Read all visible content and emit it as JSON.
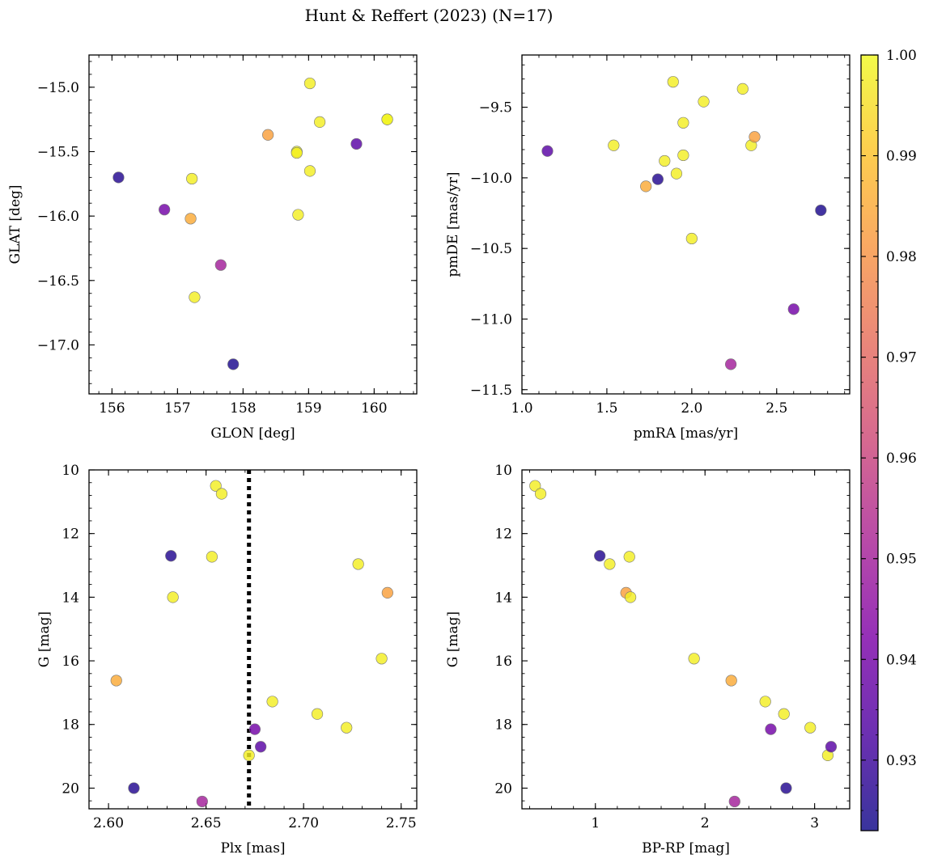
{
  "figure": {
    "title": "Hunt & Reffert (2023) (N=17)",
    "colorbar": {
      "colormap": "plasma",
      "range": [
        0.923,
        1.0
      ],
      "ticks": [
        0.93,
        0.94,
        0.95,
        0.96,
        0.97,
        0.98,
        0.99,
        1.0
      ],
      "tick_labels": [
        "0.93",
        "0.94",
        "0.95",
        "0.96",
        "0.97",
        "0.98",
        "0.99",
        "1.00"
      ]
    }
  },
  "chart_data": [
    {
      "type": "scatter",
      "xlabel": "GLON [deg]",
      "ylabel": "GLAT [deg]",
      "xlim": [
        155.65,
        160.65
      ],
      "ylim": [
        -17.38,
        -14.75
      ],
      "xticks": [
        156,
        157,
        158,
        159,
        160
      ],
      "yticks": [
        -15.0,
        -15.5,
        -16.0,
        -16.5,
        -17.0
      ],
      "xtick_labels": [
        "156",
        "157",
        "158",
        "159",
        "160"
      ],
      "ytick_labels": [
        "−15.0",
        "−15.5",
        "−16.0",
        "−16.5",
        "−17.0"
      ],
      "points": [
        {
          "x": 156.1,
          "y": -15.7,
          "c": 0.926
        },
        {
          "x": 156.8,
          "y": -15.95,
          "c": 0.94
        },
        {
          "x": 157.2,
          "y": -16.02,
          "c": 0.985
        },
        {
          "x": 157.22,
          "y": -15.71,
          "c": 0.998
        },
        {
          "x": 157.26,
          "y": -16.63,
          "c": 0.998
        },
        {
          "x": 157.66,
          "y": -16.38,
          "c": 0.95
        },
        {
          "x": 157.85,
          "y": -17.15,
          "c": 0.925
        },
        {
          "x": 158.38,
          "y": -15.37,
          "c": 0.983
        },
        {
          "x": 158.82,
          "y": -15.5,
          "c": 1.0
        },
        {
          "x": 158.82,
          "y": -15.51,
          "c": 0.998
        },
        {
          "x": 158.84,
          "y": -15.99,
          "c": 0.998
        },
        {
          "x": 159.02,
          "y": -14.97,
          "c": 0.998
        },
        {
          "x": 159.02,
          "y": -15.65,
          "c": 0.998
        },
        {
          "x": 159.17,
          "y": -15.27,
          "c": 0.998
        },
        {
          "x": 159.73,
          "y": -15.44,
          "c": 0.935
        },
        {
          "x": 160.2,
          "y": -15.25,
          "c": 1.0
        },
        {
          "x": 160.2,
          "y": -15.25,
          "c": 0.999
        }
      ]
    },
    {
      "type": "scatter",
      "xlabel": "pmRA [mas/yr]",
      "ylabel": "pmDE [mas/yr]",
      "xlim": [
        1.0,
        2.93
      ],
      "ylim": [
        -11.53,
        -9.13
      ],
      "xticks": [
        1.0,
        1.5,
        2.0,
        2.5
      ],
      "yticks": [
        -9.5,
        -10.0,
        -10.5,
        -11.0,
        -11.5
      ],
      "xtick_labels": [
        "1.0",
        "1.5",
        "2.0",
        "2.5"
      ],
      "ytick_labels": [
        "−9.5",
        "−10.0",
        "−10.5",
        "−11.0",
        "−11.5"
      ],
      "points": [
        {
          "x": 1.15,
          "y": -9.81,
          "c": 0.935
        },
        {
          "x": 1.54,
          "y": -9.77,
          "c": 0.998
        },
        {
          "x": 1.73,
          "y": -10.06,
          "c": 0.985
        },
        {
          "x": 1.8,
          "y": -10.01,
          "c": 0.926
        },
        {
          "x": 1.84,
          "y": -9.88,
          "c": 0.998
        },
        {
          "x": 1.89,
          "y": -9.32,
          "c": 0.998
        },
        {
          "x": 1.91,
          "y": -9.97,
          "c": 0.998
        },
        {
          "x": 1.95,
          "y": -9.61,
          "c": 0.998
        },
        {
          "x": 1.95,
          "y": -9.84,
          "c": 0.998
        },
        {
          "x": 2.0,
          "y": -10.43,
          "c": 0.998
        },
        {
          "x": 2.07,
          "y": -9.46,
          "c": 0.998
        },
        {
          "x": 2.23,
          "y": -11.32,
          "c": 0.95
        },
        {
          "x": 2.3,
          "y": -9.37,
          "c": 0.998
        },
        {
          "x": 2.35,
          "y": -9.77,
          "c": 0.998
        },
        {
          "x": 2.37,
          "y": -9.71,
          "c": 0.983
        },
        {
          "x": 2.6,
          "y": -10.93,
          "c": 0.94
        },
        {
          "x": 2.76,
          "y": -10.23,
          "c": 0.925
        }
      ]
    },
    {
      "type": "scatter",
      "xlabel": "Plx [mas]",
      "ylabel": "G [mag]",
      "xlim": [
        2.59,
        2.758
      ],
      "ylim": [
        20.65,
        10.0
      ],
      "xticks": [
        2.6,
        2.65,
        2.7,
        2.75
      ],
      "yticks": [
        10,
        12,
        14,
        16,
        18,
        20
      ],
      "xtick_labels": [
        "2.60",
        "2.65",
        "2.70",
        "2.75"
      ],
      "ytick_labels": [
        "10",
        "12",
        "14",
        "16",
        "18",
        "20"
      ],
      "vline": 2.672,
      "points": [
        {
          "x": 2.604,
          "y": 16.62,
          "c": 0.985
        },
        {
          "x": 2.613,
          "y": 20.0,
          "c": 0.926
        },
        {
          "x": 2.632,
          "y": 12.7,
          "c": 0.926
        },
        {
          "x": 2.633,
          "y": 14.0,
          "c": 0.998
        },
        {
          "x": 2.648,
          "y": 20.42,
          "c": 0.95
        },
        {
          "x": 2.653,
          "y": 12.73,
          "c": 0.998
        },
        {
          "x": 2.655,
          "y": 10.5,
          "c": 0.998
        },
        {
          "x": 2.658,
          "y": 10.75,
          "c": 0.998
        },
        {
          "x": 2.672,
          "y": 18.97,
          "c": 0.998
        },
        {
          "x": 2.675,
          "y": 18.15,
          "c": 0.94
        },
        {
          "x": 2.678,
          "y": 18.7,
          "c": 0.935
        },
        {
          "x": 2.684,
          "y": 17.28,
          "c": 0.998
        },
        {
          "x": 2.707,
          "y": 17.67,
          "c": 0.998
        },
        {
          "x": 2.722,
          "y": 18.1,
          "c": 0.998
        },
        {
          "x": 2.728,
          "y": 12.96,
          "c": 0.998
        },
        {
          "x": 2.74,
          "y": 15.93,
          "c": 0.998
        },
        {
          "x": 2.743,
          "y": 13.86,
          "c": 0.983
        }
      ]
    },
    {
      "type": "scatter",
      "xlabel": "BP-RP [mag]",
      "ylabel": "G [mag]",
      "xlim": [
        0.33,
        3.32
      ],
      "ylim": [
        20.65,
        10.0
      ],
      "xticks": [
        1,
        2,
        3
      ],
      "yticks": [
        10,
        12,
        14,
        16,
        18,
        20
      ],
      "xtick_labels": [
        "1",
        "2",
        "3"
      ],
      "ytick_labels": [
        "10",
        "12",
        "14",
        "16",
        "18",
        "20"
      ],
      "points": [
        {
          "x": 0.45,
          "y": 10.5,
          "c": 0.998
        },
        {
          "x": 0.5,
          "y": 10.75,
          "c": 0.998
        },
        {
          "x": 1.04,
          "y": 12.7,
          "c": 0.926
        },
        {
          "x": 1.13,
          "y": 12.96,
          "c": 0.998
        },
        {
          "x": 1.28,
          "y": 13.86,
          "c": 0.983
        },
        {
          "x": 1.31,
          "y": 12.73,
          "c": 0.998
        },
        {
          "x": 1.32,
          "y": 14.0,
          "c": 0.998
        },
        {
          "x": 1.9,
          "y": 15.93,
          "c": 0.998
        },
        {
          "x": 2.24,
          "y": 16.62,
          "c": 0.985
        },
        {
          "x": 2.27,
          "y": 20.42,
          "c": 0.95
        },
        {
          "x": 2.55,
          "y": 17.28,
          "c": 0.998
        },
        {
          "x": 2.6,
          "y": 18.15,
          "c": 0.94
        },
        {
          "x": 2.72,
          "y": 17.67,
          "c": 0.998
        },
        {
          "x": 2.74,
          "y": 20.0,
          "c": 0.926
        },
        {
          "x": 2.96,
          "y": 18.1,
          "c": 0.998
        },
        {
          "x": 3.12,
          "y": 18.97,
          "c": 0.998
        },
        {
          "x": 3.15,
          "y": 18.7,
          "c": 0.935
        }
      ]
    }
  ]
}
